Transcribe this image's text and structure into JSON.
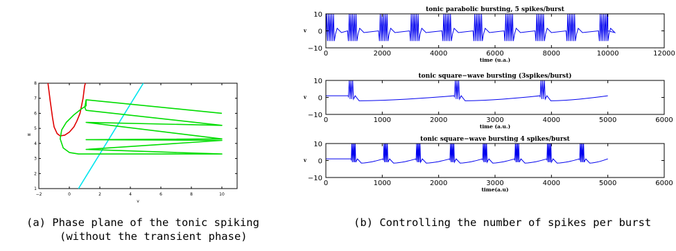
{
  "captions": {
    "a_line1": "(a)  Phase plane of the tonic spiking",
    "a_line2": "(without the transient phase)",
    "b_line1": "(b)  Controlling the number of spikes per burst"
  },
  "colors": {
    "nullcline_red": "#e00000",
    "nullcline_cyan": "#00e5ee",
    "trajectory_green": "#00dd00",
    "trace_blue": "#0000ee"
  },
  "chart_data": [
    {
      "type": "line",
      "title": "",
      "xlabel": "v",
      "ylabel": "w",
      "xlim": [
        -2,
        11
      ],
      "ylim": [
        1,
        8
      ],
      "xticks": [
        -2,
        0,
        2,
        4,
        6,
        8,
        10
      ],
      "yticks": [
        1,
        2,
        3,
        4,
        5,
        6,
        7,
        8
      ],
      "series": [
        {
          "color": "#e00000",
          "x": [
            -1.4,
            -1.25,
            -1.1,
            -1.0,
            -0.8,
            -0.6,
            -0.3,
            0.0,
            0.3,
            0.5,
            0.7,
            0.8,
            0.9,
            0.95,
            1.0,
            1.05
          ],
          "y": [
            8.0,
            6.8,
            5.7,
            5.1,
            4.65,
            4.5,
            4.55,
            4.75,
            5.1,
            5.5,
            6.0,
            6.5,
            7.0,
            7.4,
            7.8,
            8.0
          ]
        },
        {
          "color": "#00e5ee",
          "x": [
            0.6,
            4.85
          ],
          "y": [
            1.0,
            8.0
          ]
        },
        {
          "color": "#00dd00",
          "x": [
            10,
            1.1,
            1.05,
            1.02,
            1.05,
            1.1,
            10,
            1.1,
            10,
            1.1,
            10,
            1.1,
            10,
            1.1,
            0.6,
            0.0,
            -0.4,
            -0.6,
            -0.5,
            -0.2,
            0.3,
            0.8,
            1.1,
            1.1,
            10
          ],
          "y": [
            6.0,
            6.9,
            6.6,
            6.45,
            6.3,
            6.2,
            5.2,
            5.4,
            4.3,
            4.25,
            4.2,
            3.6,
            3.3,
            3.3,
            3.3,
            3.4,
            3.7,
            4.3,
            4.9,
            5.4,
            5.9,
            6.3,
            6.5,
            6.9,
            6.0
          ]
        }
      ]
    },
    {
      "type": "line",
      "title": "tonic parabolic bursting, 5 spikes/burst",
      "xlabel": "time (u.a.)",
      "ylabel": "v",
      "xlim": [
        0,
        12000
      ],
      "ylim": [
        -10,
        10
      ],
      "xticks": [
        0,
        2000,
        4000,
        6000,
        8000,
        10000,
        12000
      ],
      "yticks": [
        -10,
        0,
        10
      ],
      "burst_starts": [
        0,
        800,
        1900,
        3000,
        4150,
        5250,
        6350,
        7450,
        8550,
        9700
      ],
      "spikes_per_burst": 5,
      "burst_width": 300,
      "spike_peak": 10,
      "spike_trough": -6,
      "baseline": [
        -1,
        0
      ],
      "end": 10000
    },
    {
      "type": "line",
      "title": "tonic square−wave bursting (3spikes/burst)",
      "xlabel": "time (a.u.)",
      "ylabel": "v",
      "xlim": [
        0,
        6000
      ],
      "ylim": [
        -10,
        10
      ],
      "xticks": [
        0,
        1000,
        2000,
        3000,
        4000,
        5000,
        6000
      ],
      "yticks": [
        -10,
        0,
        10
      ],
      "burst_starts": [
        400,
        2280,
        3800
      ],
      "spikes_per_burst": 3,
      "burst_width": 90,
      "spike_peak": 10,
      "baseline_up": 1,
      "baseline_down": -2,
      "end": 5000
    },
    {
      "type": "line",
      "title": "tonic square−wave bursting 4 spikes/burst",
      "xlabel": "time(a.u)",
      "ylabel": "v",
      "xlim": [
        0,
        6000
      ],
      "ylim": [
        -10,
        10
      ],
      "xticks": [
        0,
        1000,
        2000,
        3000,
        4000,
        5000,
        6000
      ],
      "yticks": [
        -10,
        0,
        10
      ],
      "burst_starts": [
        450,
        1020,
        1600,
        2200,
        2780,
        3350,
        3920,
        4500
      ],
      "spikes_per_burst": 4,
      "burst_width": 80,
      "spike_peak": 10,
      "baseline_up": 1,
      "baseline_down": -1.5,
      "end": 5000
    }
  ]
}
